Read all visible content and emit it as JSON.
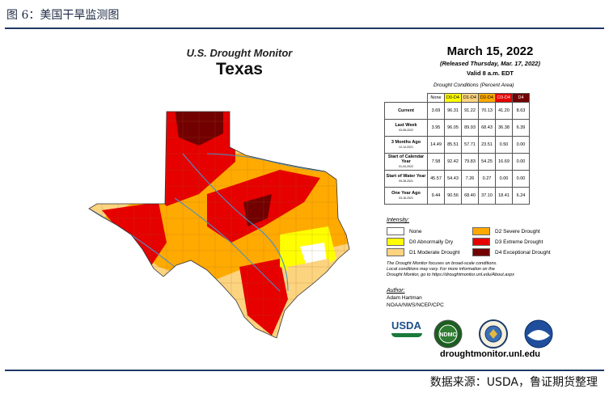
{
  "figure": {
    "caption": "图 6：美国干旱监测图",
    "source": "数据来源：USDA，鲁证期货整理"
  },
  "monitor": {
    "title_line1": "U.S. Drought Monitor",
    "title_line2": "Texas",
    "date": "March 15, 2022",
    "released": "(Released Thursday, Mar. 17, 2022)",
    "valid": "Valid 8 a.m. EDT",
    "table_title": "Drought Conditions (Percent Area)",
    "table_headers": [
      "None",
      "D0-D4",
      "D1-D4",
      "D2-D4",
      "D3-D4",
      "D4"
    ],
    "rows": [
      {
        "label": "Current",
        "sub": "",
        "values": [
          "3.69",
          "96.31",
          "91.22",
          "70.13",
          "41.20",
          "8.63"
        ]
      },
      {
        "label": "Last Week",
        "sub": "03-08-2022",
        "values": [
          "3.95",
          "96.05",
          "89.93",
          "68.43",
          "36.38",
          "6.39"
        ]
      },
      {
        "label": "3 Months Ago",
        "sub": "12-14-2021",
        "values": [
          "14.49",
          "85.51",
          "57.71",
          "23.51",
          "0.50",
          "0.00"
        ]
      },
      {
        "label": "Start of Calendar Year",
        "sub": "01-04-2022",
        "values": [
          "7.58",
          "92.42",
          "79.83",
          "54.25",
          "16.69",
          "0.00"
        ]
      },
      {
        "label": "Start of Water Year",
        "sub": "09-28-2021",
        "values": [
          "45.57",
          "54.43",
          "7.26",
          "0.27",
          "0.00",
          "0.00"
        ]
      },
      {
        "label": "One Year Ago",
        "sub": "03-16-2021",
        "values": [
          "9.44",
          "90.56",
          "68.40",
          "37.10",
          "18.41",
          "6.24"
        ]
      }
    ],
    "intensity_title": "Intensity:",
    "legend": [
      {
        "label": "None",
        "color": "#ffffff"
      },
      {
        "label": "D0 Abnormally Dry",
        "color": "#ffff00"
      },
      {
        "label": "D1 Moderate Drought",
        "color": "#fcd37f"
      },
      {
        "label": "D2 Severe Drought",
        "color": "#ffaa00"
      },
      {
        "label": "D3 Extreme Drought",
        "color": "#e60000"
      },
      {
        "label": "D4 Exceptional Drought",
        "color": "#730000"
      }
    ],
    "note_line1": "The Drought Monitor focuses on broad-scale conditions.",
    "note_line2": "Local conditions may vary. For more information on the",
    "note_line3": "Drought Monitor, go to https://droughtmonitor.unl.edu/About.aspx",
    "author_title": "Author:",
    "author": "Adam Hartman",
    "agency": "NOAA/NWS/NCEP/CPC",
    "logos": [
      "usda-logo",
      "ndmc-logo",
      "doc-seal-logo",
      "noaa-logo"
    ],
    "usda_text": "USDA",
    "ndmc_text": "NDMC",
    "url": "droughtmonitor.unl.edu"
  }
}
